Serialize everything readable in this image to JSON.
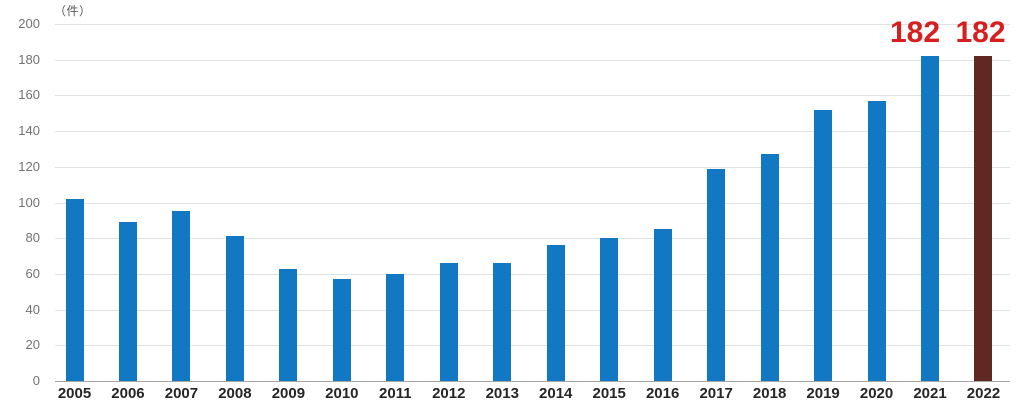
{
  "chart_data": {
    "type": "bar",
    "title": "",
    "unit_label": "（件）",
    "categories": [
      "2005",
      "2006",
      "2007",
      "2008",
      "2009",
      "2010",
      "2011",
      "2012",
      "2013",
      "2014",
      "2015",
      "2016",
      "2017",
      "2018",
      "2019",
      "2020",
      "2021",
      "2022"
    ],
    "values": [
      102,
      89,
      95,
      81,
      63,
      57,
      60,
      66,
      66,
      76,
      80,
      85,
      119,
      127,
      152,
      157,
      182,
      182
    ],
    "ylim": [
      0,
      200
    ],
    "ytick_step": 20,
    "yticks": [
      0,
      20,
      40,
      60,
      80,
      100,
      120,
      140,
      160,
      180,
      200
    ],
    "grid": true,
    "legend_position": "none",
    "bar_color_default": "#1278c3",
    "bar_color_highlight": "#602823",
    "highlight_category": "2022",
    "annotation_color": "#d71f1f",
    "annotations": [
      {
        "category": "2021",
        "text": "182",
        "dx": -15
      },
      {
        "category": "2022",
        "text": "182",
        "dx": -3
      }
    ]
  }
}
